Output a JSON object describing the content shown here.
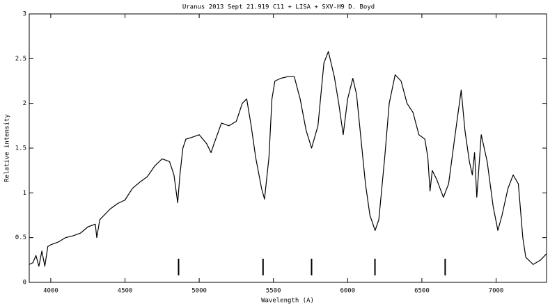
{
  "chart_data": {
    "type": "line",
    "title": "Uranus   2013 Sept 21.919     C11 + LISA + SXV-H9      D. Boyd",
    "x_label": "Wavelength (A)",
    "y_label": "Relative intensity",
    "xlim": [
      3855,
      7340
    ],
    "ylim": [
      0,
      3
    ],
    "xticks": [
      4000,
      4500,
      5000,
      5500,
      6000,
      6500,
      7000
    ],
    "yticks": [
      0,
      0.5,
      1,
      1.5,
      2,
      2.5,
      3
    ],
    "color": "#000000",
    "grid": false,
    "markers": [
      4861,
      5430,
      5757,
      6184,
      6657
    ],
    "x": [
      3855,
      3880,
      3900,
      3920,
      3940,
      3960,
      3980,
      4000,
      4050,
      4100,
      4150,
      4200,
      4250,
      4300,
      4310,
      4330,
      4400,
      4450,
      4500,
      4550,
      4600,
      4650,
      4700,
      4750,
      4800,
      4830,
      4855,
      4870,
      4890,
      4910,
      4950,
      5000,
      5050,
      5080,
      5100,
      5150,
      5200,
      5250,
      5290,
      5320,
      5350,
      5380,
      5420,
      5440,
      5470,
      5490,
      5510,
      5550,
      5600,
      5640,
      5680,
      5720,
      5757,
      5800,
      5840,
      5870,
      5910,
      5940,
      5970,
      6000,
      6035,
      6060,
      6090,
      6120,
      6150,
      6185,
      6210,
      6250,
      6280,
      6320,
      6360,
      6400,
      6440,
      6480,
      6520,
      6540,
      6555,
      6570,
      6600,
      6645,
      6680,
      6720,
      6765,
      6790,
      6820,
      6840,
      6855,
      6870,
      6900,
      6940,
      6980,
      7012,
      7040,
      7080,
      7115,
      7150,
      7180,
      7200,
      7250,
      7300,
      7340
    ],
    "values": [
      0.2,
      0.22,
      0.3,
      0.18,
      0.35,
      0.18,
      0.4,
      0.42,
      0.45,
      0.5,
      0.52,
      0.55,
      0.62,
      0.65,
      0.5,
      0.7,
      0.82,
      0.88,
      0.92,
      1.05,
      1.12,
      1.18,
      1.3,
      1.38,
      1.35,
      1.2,
      0.89,
      1.2,
      1.5,
      1.6,
      1.62,
      1.65,
      1.55,
      1.45,
      1.55,
      1.78,
      1.75,
      1.8,
      2.0,
      2.05,
      1.75,
      1.4,
      1.05,
      0.93,
      1.4,
      2.05,
      2.25,
      2.28,
      2.3,
      2.3,
      2.05,
      1.7,
      1.5,
      1.75,
      2.45,
      2.58,
      2.3,
      2.0,
      1.65,
      2.05,
      2.28,
      2.1,
      1.6,
      1.1,
      0.75,
      0.58,
      0.7,
      1.4,
      2.0,
      2.32,
      2.25,
      2.0,
      1.9,
      1.65,
      1.6,
      1.4,
      1.02,
      1.25,
      1.15,
      0.95,
      1.1,
      1.6,
      2.15,
      1.7,
      1.35,
      1.2,
      1.45,
      0.95,
      1.65,
      1.35,
      0.85,
      0.58,
      0.75,
      1.05,
      1.2,
      1.1,
      0.5,
      0.28,
      0.2,
      0.25,
      0.32
    ]
  }
}
